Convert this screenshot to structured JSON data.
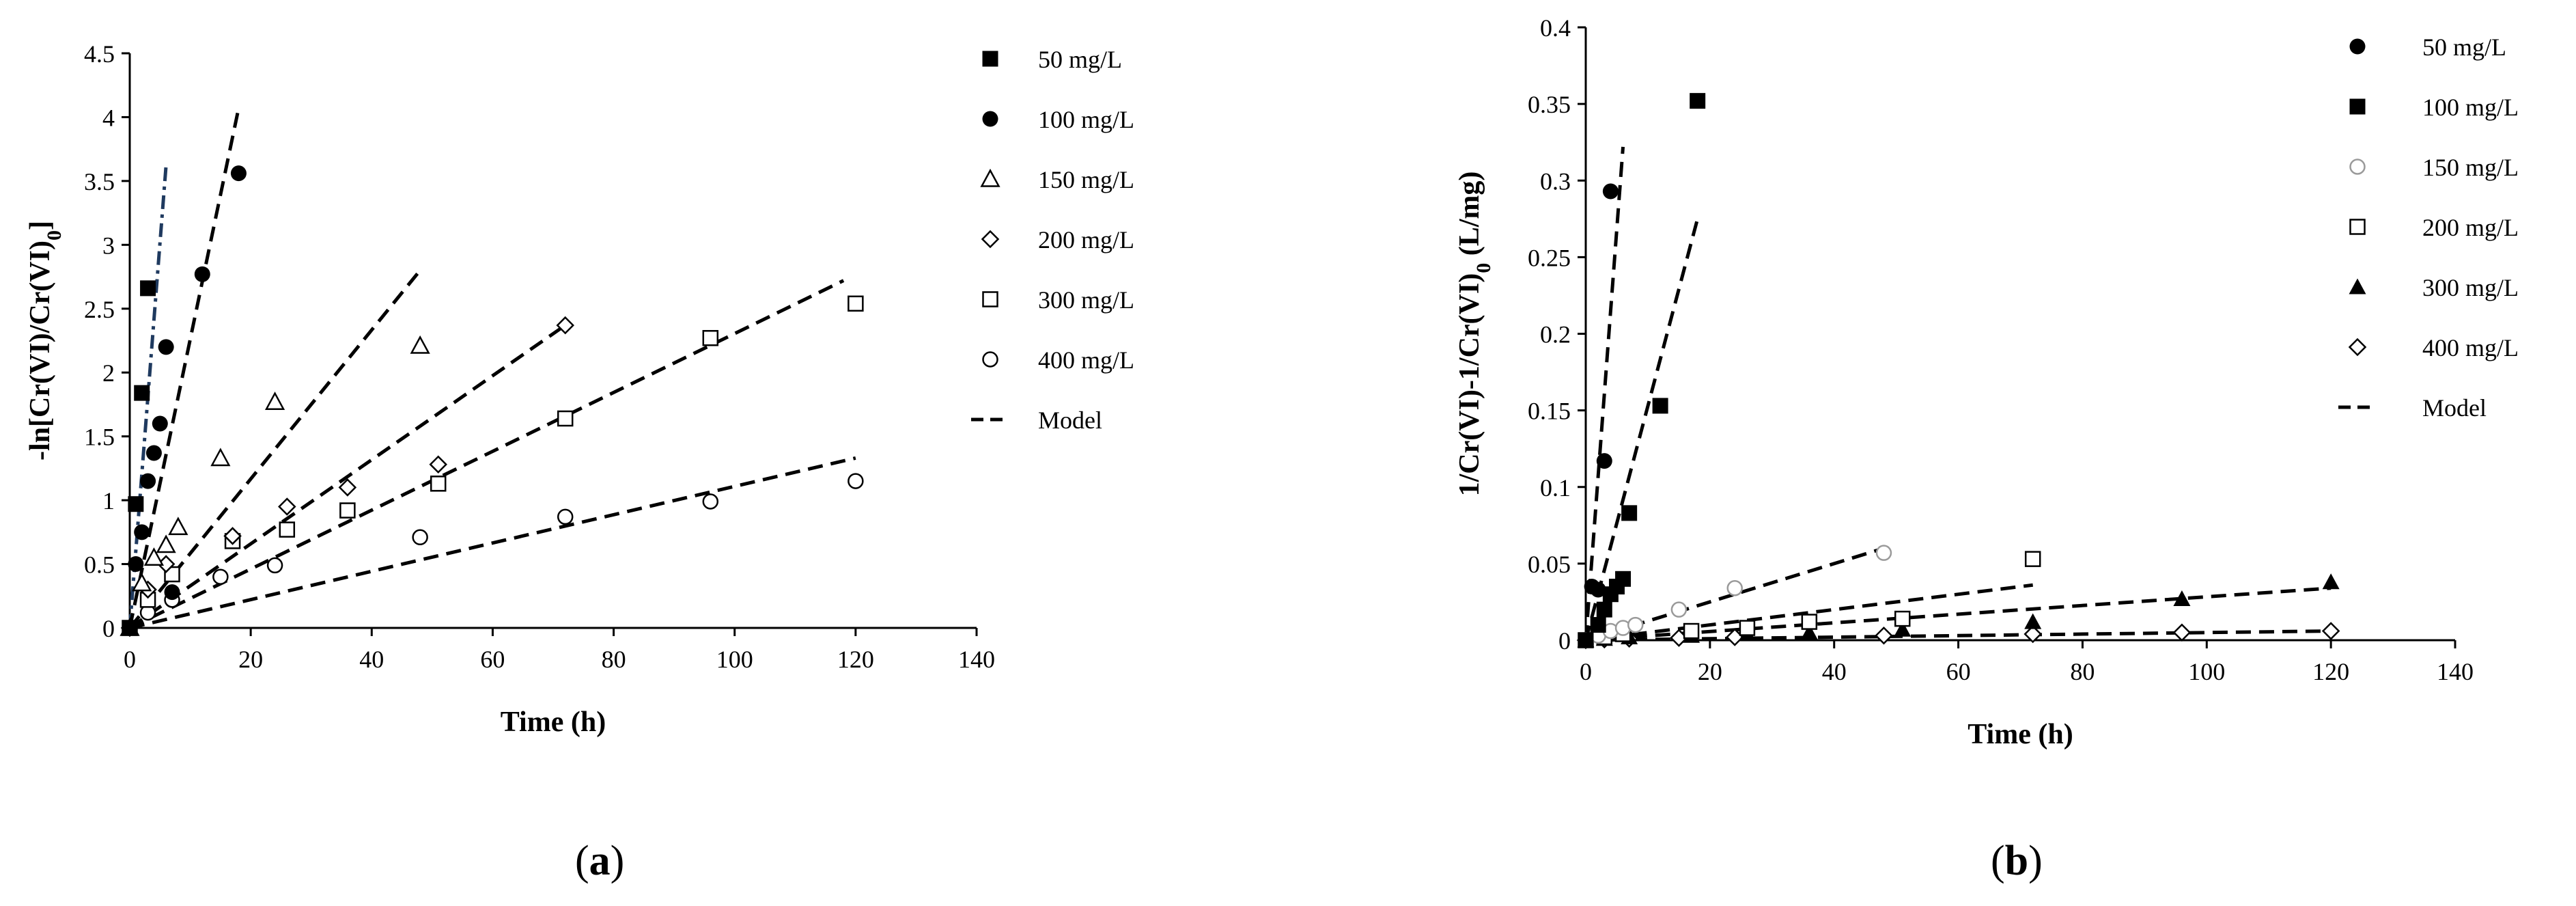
{
  "colors": {
    "ink": "#000000",
    "fill_white": "#ffffff",
    "model_alt": "#1f3a5f"
  },
  "chart_data": [
    {
      "type": "scatter",
      "panel_label": "a",
      "xlabel": "Time (h)",
      "ylabel": "-ln[Cr(VI)/Cr(VI)0]",
      "ylabel_main": "-ln[Cr(VI)/Cr(VI)",
      "ylabel_sub": "0",
      "ylabel_end": "]",
      "xlim": [
        0,
        140
      ],
      "ylim": [
        0,
        4.5
      ],
      "xticks": [
        "0",
        "20",
        "40",
        "60",
        "80",
        "100",
        "120",
        "140"
      ],
      "yticks": [
        "0",
        "0.5",
        "1",
        "1.5",
        "2",
        "2.5",
        "3",
        "3.5",
        "4",
        "4.5"
      ],
      "legend_position": "right",
      "legend": [
        {
          "label": "50 mg/L",
          "marker": "square-filled"
        },
        {
          "label": "100 mg/L",
          "marker": "circle-filled"
        },
        {
          "label": "150 mg/L",
          "marker": "triangle-open"
        },
        {
          "label": "200 mg/L",
          "marker": "diamond-open"
        },
        {
          "label": "300 mg/L",
          "marker": "square-open"
        },
        {
          "label": "400 mg/L",
          "marker": "circle-open"
        },
        {
          "label": "Model",
          "marker": "dash"
        }
      ],
      "series": [
        {
          "name": "50 mg/L",
          "marker": "square-filled",
          "x": [
            0,
            1,
            2,
            3
          ],
          "y": [
            0,
            0.97,
            1.84,
            2.66
          ]
        },
        {
          "name": "100 mg/L",
          "marker": "circle-filled",
          "x": [
            0,
            1,
            2,
            3,
            4,
            5,
            6,
            7,
            12,
            18
          ],
          "y": [
            0,
            0.5,
            0.75,
            1.15,
            1.37,
            1.6,
            2.2,
            0.28,
            2.77,
            3.56
          ]
        },
        {
          "name": "150 mg/L",
          "marker": "triangle-open",
          "x": [
            0,
            2,
            4,
            6,
            8,
            15,
            24,
            48
          ],
          "y": [
            0,
            0.35,
            0.55,
            0.65,
            0.79,
            1.33,
            1.77,
            2.21
          ]
        },
        {
          "name": "200 mg/L",
          "marker": "diamond-open",
          "x": [
            0,
            3,
            6,
            17,
            26,
            36,
            51,
            72
          ],
          "y": [
            0,
            0.3,
            0.5,
            0.72,
            0.95,
            1.1,
            1.28,
            2.37
          ]
        },
        {
          "name": "300 mg/L",
          "marker": "square-open",
          "x": [
            0,
            3,
            7,
            17,
            26,
            36,
            51,
            72,
            96,
            120
          ],
          "y": [
            0,
            0.22,
            0.42,
            0.68,
            0.77,
            0.92,
            1.13,
            1.64,
            2.27,
            2.54
          ]
        },
        {
          "name": "400 mg/L",
          "marker": "circle-open",
          "x": [
            0,
            3,
            7,
            15,
            24,
            48,
            72,
            96,
            120
          ],
          "y": [
            0,
            0.12,
            0.22,
            0.4,
            0.49,
            0.71,
            0.87,
            0.99,
            1.15
          ]
        }
      ],
      "model_lines": [
        {
          "name": "Model 50 mg/L",
          "style": "dashdot",
          "x": [
            0,
            6
          ],
          "y": [
            0,
            3.62
          ]
        },
        {
          "name": "Model 100 mg/L",
          "style": "dash",
          "x": [
            0,
            18
          ],
          "y": [
            0,
            4.07
          ]
        },
        {
          "name": "Model 150 mg/L",
          "style": "dash",
          "x": [
            0,
            48
          ],
          "y": [
            0,
            2.8
          ]
        },
        {
          "name": "Model 200 mg/L",
          "style": "dash",
          "x": [
            0,
            72
          ],
          "y": [
            0,
            2.37
          ]
        },
        {
          "name": "Model 300 mg/L",
          "style": "dash",
          "x": [
            0,
            118
          ],
          "y": [
            0,
            2.72
          ]
        },
        {
          "name": "Model 400 mg/L",
          "style": "dash",
          "x": [
            0,
            120
          ],
          "y": [
            0,
            1.33
          ]
        }
      ]
    },
    {
      "type": "scatter",
      "panel_label": "b",
      "xlabel": "Time (h)",
      "ylabel": "1/Cr(VI)-1/Cr(VI)0 (L/mg)",
      "ylabel_main": "1/Cr(VI)-1/Cr(VI)",
      "ylabel_sub": "0",
      "ylabel_end": " (L/mg)",
      "xlim": [
        0,
        140
      ],
      "ylim": [
        0,
        0.4
      ],
      "xticks": [
        "0",
        "20",
        "40",
        "60",
        "80",
        "100",
        "120",
        "140"
      ],
      "yticks": [
        "0",
        "0.05",
        "0.1",
        "0.15",
        "0.2",
        "0.25",
        "0.3",
        "0.35",
        "0.4"
      ],
      "legend_position": "right",
      "legend": [
        {
          "label": "50 mg/L",
          "marker": "circle-filled"
        },
        {
          "label": "100 mg/L",
          "marker": "square-filled"
        },
        {
          "label": "150 mg/L",
          "marker": "circle-open-gray"
        },
        {
          "label": "200 mg/L",
          "marker": "square-open"
        },
        {
          "label": "300 mg/L",
          "marker": "triangle-filled"
        },
        {
          "label": "400 mg/L",
          "marker": "diamond-open"
        },
        {
          "label": "Model",
          "marker": "dash"
        }
      ],
      "series": [
        {
          "name": "50 mg/L",
          "marker": "circle-filled",
          "x": [
            0,
            1,
            2,
            3,
            4
          ],
          "y": [
            0,
            0.035,
            0.033,
            0.117,
            0.293
          ]
        },
        {
          "name": "100 mg/L",
          "marker": "square-filled",
          "x": [
            0,
            2,
            3,
            4,
            5,
            6,
            7,
            12,
            18
          ],
          "y": [
            0,
            0.01,
            0.02,
            0.03,
            0.035,
            0.04,
            0.083,
            0.153,
            0.352
          ]
        },
        {
          "name": "150 mg/L",
          "marker": "circle-open-gray",
          "x": [
            0,
            2,
            4,
            6,
            8,
            15,
            24,
            48
          ],
          "y": [
            0,
            0.003,
            0.006,
            0.008,
            0.01,
            0.02,
            0.034,
            0.057
          ]
        },
        {
          "name": "200 mg/L",
          "marker": "square-open",
          "x": [
            0,
            3,
            6,
            17,
            26,
            36,
            51,
            72
          ],
          "y": [
            0,
            0.002,
            0.004,
            0.006,
            0.008,
            0.012,
            0.014,
            0.053
          ]
        },
        {
          "name": "300 mg/L",
          "marker": "triangle-filled",
          "x": [
            0,
            3,
            7,
            17,
            26,
            36,
            51,
            72,
            96,
            120
          ],
          "y": [
            0,
            0.001,
            0.002,
            0.003,
            0.004,
            0.005,
            0.007,
            0.012,
            0.027,
            0.038
          ]
        },
        {
          "name": "400 mg/L",
          "marker": "diamond-open",
          "x": [
            0,
            3,
            7,
            15,
            24,
            48,
            72,
            96,
            120
          ],
          "y": [
            0,
            0.0005,
            0.001,
            0.0015,
            0.002,
            0.003,
            0.004,
            0.005,
            0.006
          ]
        }
      ],
      "model_lines": [
        {
          "name": "Model 50 mg/L",
          "style": "dash",
          "x": [
            0,
            6
          ],
          "y": [
            0,
            0.322
          ]
        },
        {
          "name": "Model 100 mg/L",
          "style": "dash",
          "x": [
            0,
            18
          ],
          "y": [
            0,
            0.275
          ]
        },
        {
          "name": "Model 150 mg/L",
          "style": "dash",
          "x": [
            0,
            48
          ],
          "y": [
            0,
            0.06
          ]
        },
        {
          "name": "Model 200 mg/L",
          "style": "dash",
          "x": [
            0,
            72
          ],
          "y": [
            0,
            0.036
          ]
        },
        {
          "name": "Model 300 mg/L",
          "style": "dash",
          "x": [
            0,
            120
          ],
          "y": [
            0,
            0.034
          ]
        },
        {
          "name": "Model 400 mg/L",
          "style": "dash",
          "x": [
            0,
            120
          ],
          "y": [
            0,
            0.006
          ]
        }
      ]
    }
  ]
}
